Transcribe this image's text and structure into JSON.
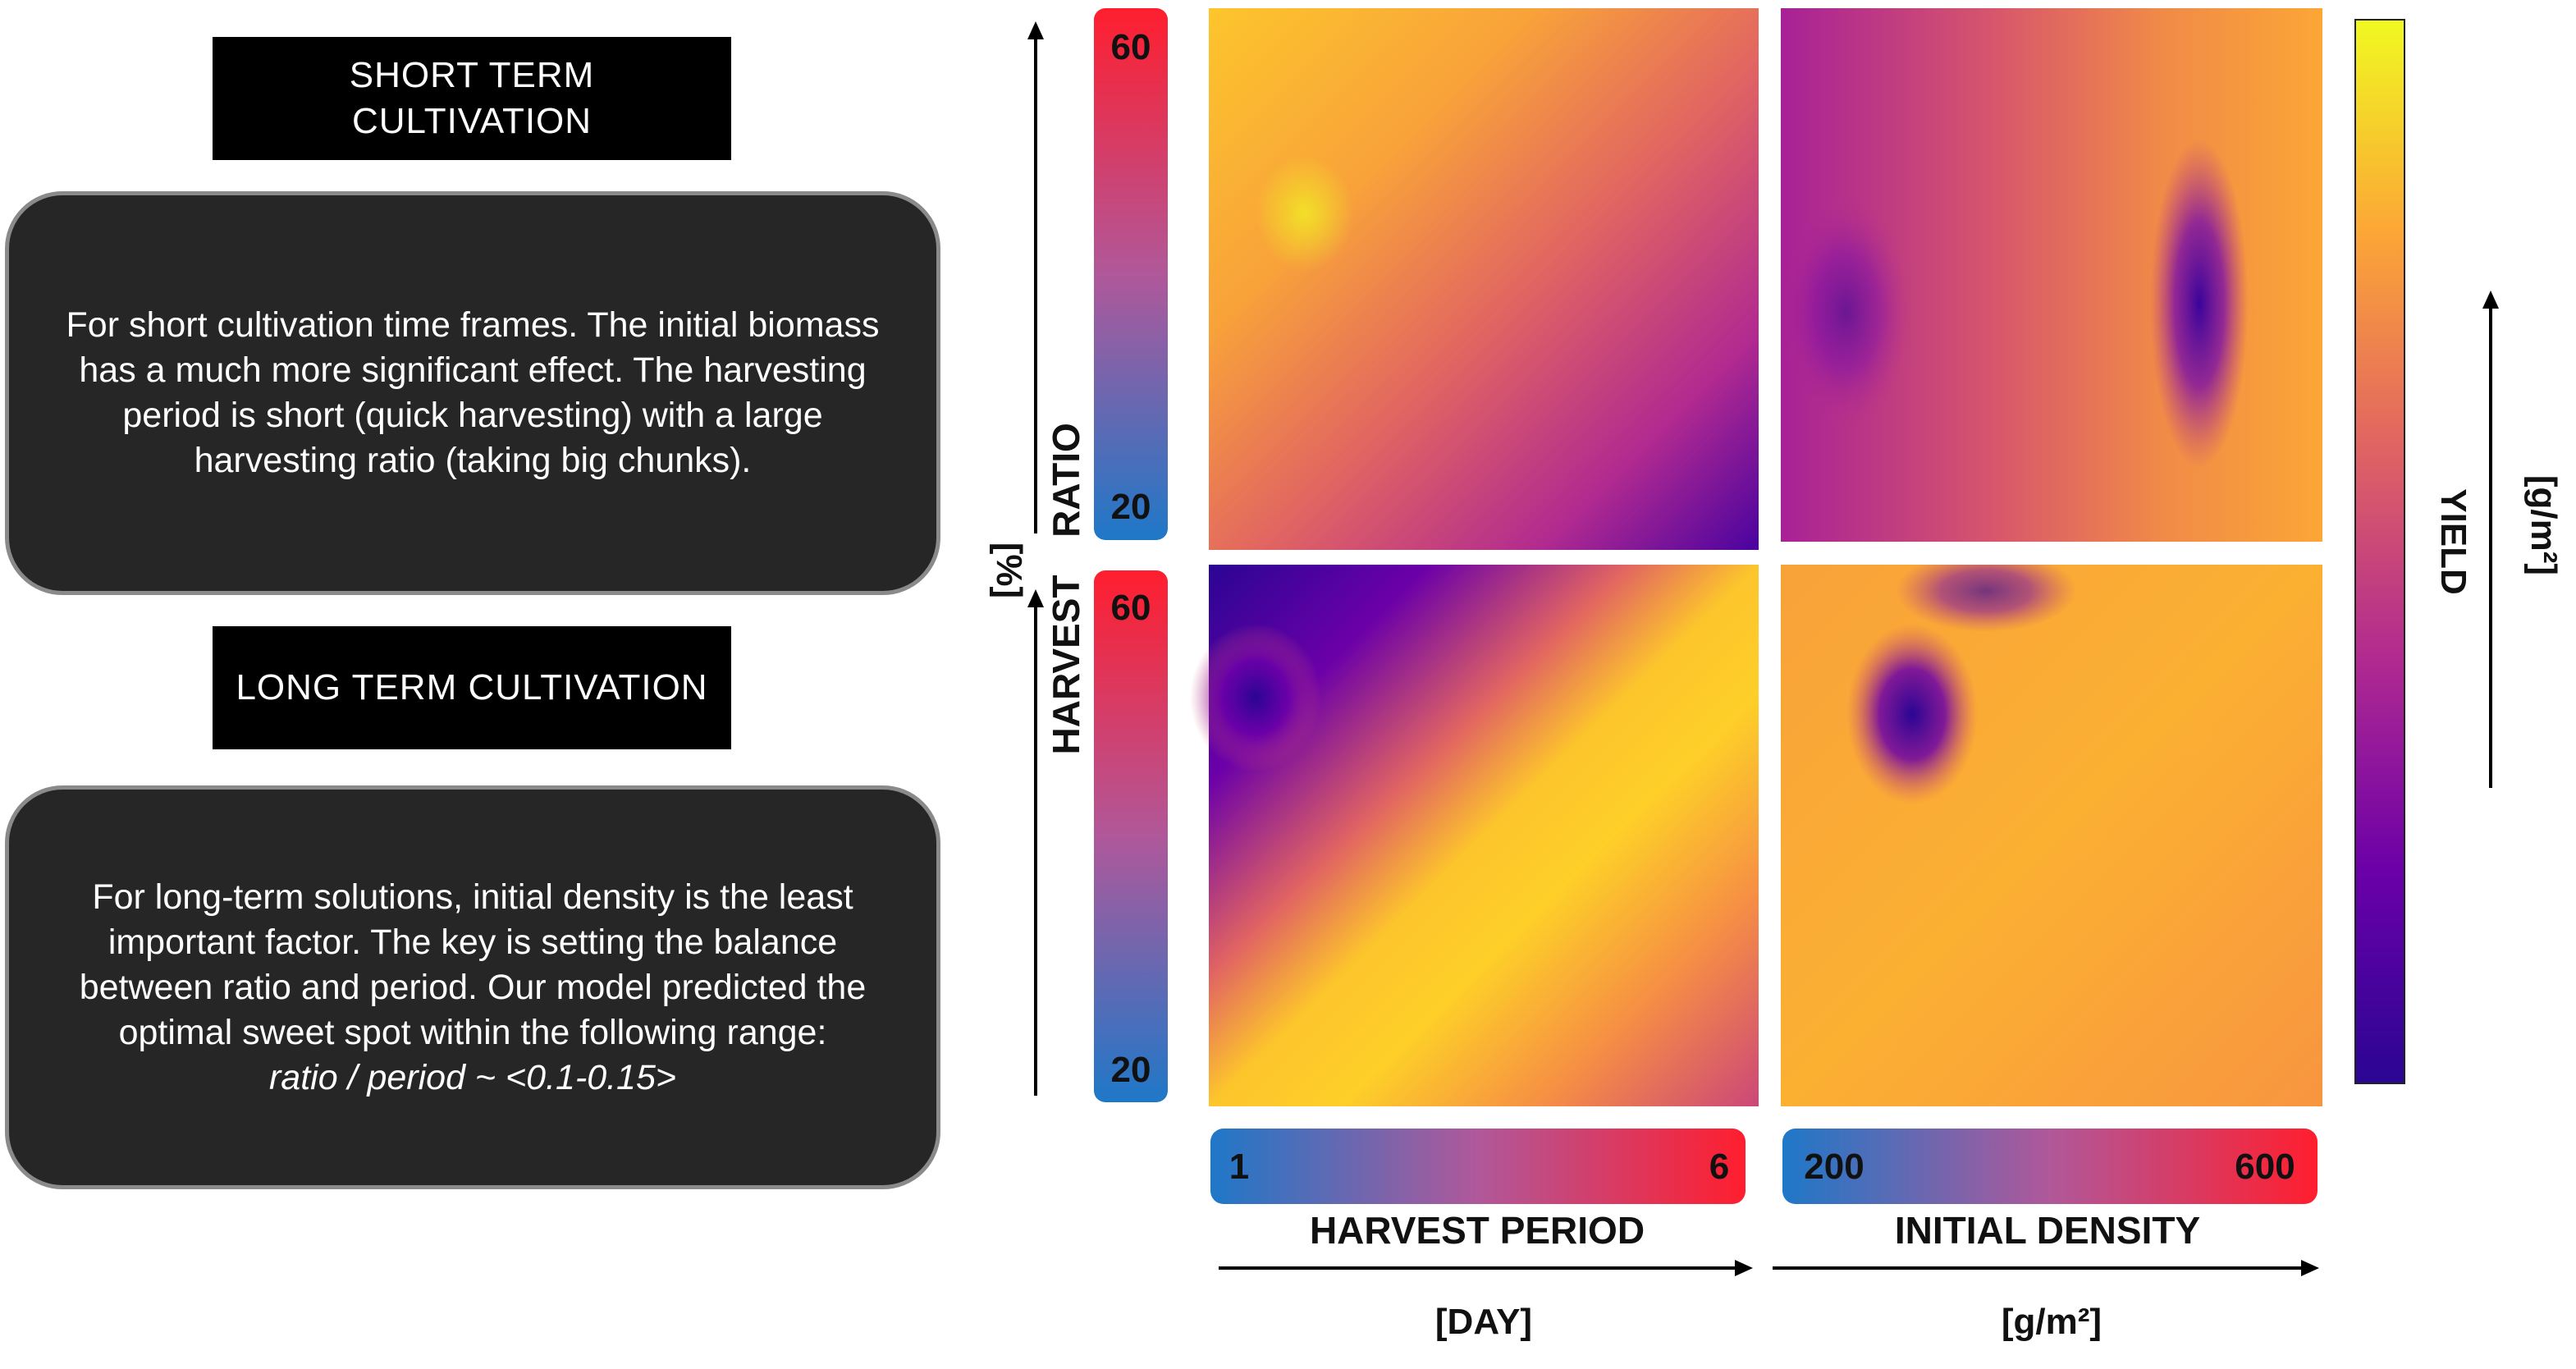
{
  "panel_left": {
    "short_title": [
      "SHORT TERM",
      "CULTIVATION"
    ],
    "short_text": "For short cultivation time frames. The initial biomass has a much more significant effect. The harvesting period is short (quick harvesting) with a large harvesting ratio (taking big chunks).",
    "long_title": "LONG TERM CULTIVATION",
    "long_text": "For long-term solutions, initial density is the least important factor. The key is setting the balance between ratio and period. Our model predicted the optimal sweet spot within the following range:",
    "long_formula": "ratio / period ~ <0.1-0.15>"
  },
  "colors": {
    "box_bg": "#262626",
    "scale_low": "#1e78c8",
    "scale_mid": "#9b6aa6",
    "scale_high": "#ff1e2e"
  },
  "chart_data": {
    "type": "heatmap",
    "colormap": "plasma",
    "panels": [
      {
        "id": "ratio-period",
        "x": "HARVEST PERIOD",
        "y": "HARVEST RATIO",
        "description": "yield highest at short period / high ratio corner, decreasing toward long period"
      },
      {
        "id": "ratio-density",
        "x": "INITIAL DENSITY",
        "y": "HARVEST RATIO",
        "description": "mostly mid-range yield with low streak near high density"
      },
      {
        "id": "ratio-period-long",
        "x": "HARVEST PERIOD",
        "y": "HARVEST RATIO",
        "description": "diagonal high-yield band, low yield at short period / high ratio"
      },
      {
        "id": "ratio-density-long",
        "x": "INITIAL DENSITY",
        "y": "HARVEST RATIO",
        "description": "mostly high yield with low spot at low density / high ratio"
      }
    ],
    "y_axis": {
      "label_top": "RATIO",
      "label_bottom": "HARVEST",
      "unit": "[%]",
      "range": [
        20,
        60
      ],
      "tick_labels": [
        "60",
        "20"
      ]
    },
    "x_axis_period": {
      "label": "HARVEST PERIOD",
      "unit": "[DAY]",
      "range": [
        1,
        6
      ],
      "tick_labels": [
        "1",
        "6"
      ]
    },
    "x_axis_density": {
      "label": "INITIAL DENSITY",
      "unit": "[g/m²]",
      "range": [
        200,
        600
      ],
      "tick_labels": [
        "200",
        "600"
      ]
    },
    "colorbar": {
      "label": "YIELD",
      "unit": "[g/m²]"
    }
  }
}
